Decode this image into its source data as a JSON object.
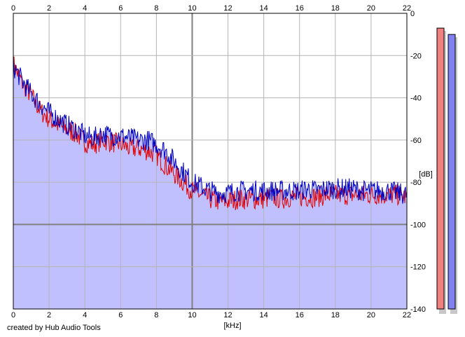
{
  "credit": "created by Hub Audio Tools",
  "colors": {
    "channel_left": "#e00000",
    "channel_right": "#0000c0",
    "fill": "#c0c0ff",
    "grid": "#b4b4b4",
    "meter_left": "#f08080",
    "meter_right": "#8080f0"
  },
  "chart_data": {
    "type": "line",
    "xlabel": "[kHz]",
    "ylabel": "[dB]",
    "xlim": [
      0,
      22
    ],
    "ylim": [
      -140,
      0
    ],
    "x_ticks": [
      "0",
      "2",
      "4",
      "6",
      "8",
      "10",
      "12",
      "14",
      "16",
      "18",
      "20",
      "22"
    ],
    "y_ticks": [
      "0",
      "-20",
      "-40",
      "-60",
      "-80",
      "-100",
      "-120",
      "-140"
    ],
    "grid": true,
    "series": [
      {
        "color": "#e00000",
        "x": [
          0,
          0.5,
          1,
          1.5,
          2,
          2.5,
          3,
          3.5,
          4,
          4.5,
          5,
          5.5,
          6,
          6.5,
          7,
          7.5,
          8,
          8.5,
          9,
          9.5,
          10,
          10.5,
          11,
          11.5,
          12,
          12.5,
          13,
          13.5,
          14,
          14.5,
          15,
          15.5,
          16,
          16.5,
          17,
          17.5,
          18,
          18.5,
          19,
          19.5,
          20,
          20.5,
          21,
          21.5,
          22
        ],
        "values": [
          -24,
          -33,
          -39,
          -46,
          -50,
          -53,
          -55,
          -57,
          -61,
          -62,
          -60,
          -61,
          -62,
          -64,
          -64,
          -65,
          -67,
          -72,
          -76,
          -80,
          -84,
          -86,
          -88,
          -89,
          -89,
          -88,
          -88,
          -88,
          -88,
          -87,
          -88,
          -87,
          -87,
          -87,
          -87,
          -86,
          -86,
          -86,
          -86,
          -86,
          -86,
          -86,
          -86,
          -86,
          -87
        ]
      },
      {
        "color": "#0000c0",
        "x": [
          0,
          0.5,
          1,
          1.5,
          2,
          2.5,
          3,
          3.5,
          4,
          4.5,
          5,
          5.5,
          6,
          6.5,
          7,
          7.5,
          8,
          8.5,
          9,
          9.5,
          10,
          10.5,
          11,
          11.5,
          12,
          12.5,
          13,
          13.5,
          14,
          14.5,
          15,
          15.5,
          16,
          16.5,
          17,
          17.5,
          18,
          18.5,
          19,
          19.5,
          20,
          20.5,
          21,
          21.5,
          22
        ],
        "values": [
          -25,
          -32,
          -38,
          -43,
          -47,
          -50,
          -53,
          -55,
          -58,
          -59,
          -57,
          -58,
          -58,
          -59,
          -60,
          -60,
          -62,
          -65,
          -70,
          -75,
          -80,
          -82,
          -84,
          -85,
          -85,
          -84,
          -84,
          -84,
          -84,
          -84,
          -84,
          -84,
          -84,
          -83,
          -84,
          -83,
          -83,
          -83,
          -83,
          -84,
          -84,
          -84,
          -84,
          -85,
          -86
        ]
      }
    ],
    "level_meters": [
      {
        "channel": "left",
        "color": "#f08080",
        "value_db": -7,
        "min_db": -140,
        "max_db": 0
      },
      {
        "channel": "right",
        "color": "#8080f0",
        "value_db": -10,
        "min_db": -140,
        "max_db": 0
      }
    ]
  }
}
